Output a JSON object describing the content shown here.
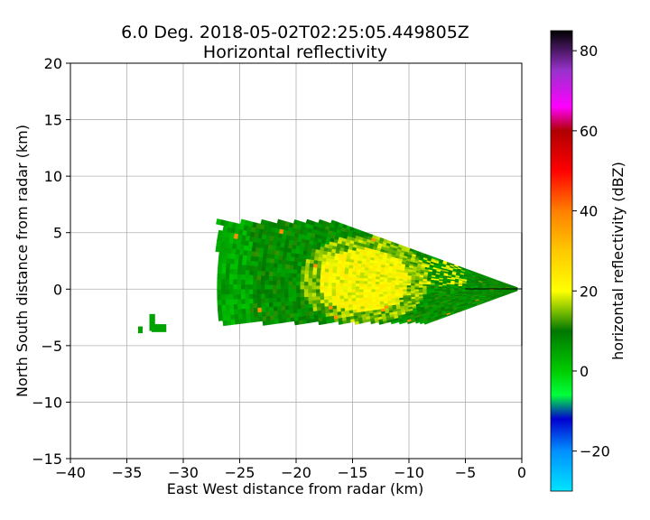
{
  "chart_data": {
    "type": "heatmap",
    "title": "6.0 Deg. 2018-05-02T02:25:05.449805Z",
    "subtitle": "Horizontal reflectivity",
    "xlabel": "East West distance from radar (km)",
    "ylabel": "North South distance from radar (km)",
    "xlim": [
      -40,
      0
    ],
    "ylim": [
      -15,
      20
    ],
    "xticks": [
      -40,
      -35,
      -30,
      -25,
      -20,
      -15,
      -10,
      -5,
      0
    ],
    "yticks": [
      -15,
      -10,
      -5,
      0,
      5,
      10,
      15,
      20
    ],
    "grid": true,
    "colorbar": {
      "label": "horizontal reflectivity (dBZ)",
      "range": [
        -30,
        85
      ],
      "ticks": [
        -20,
        0,
        20,
        40,
        60,
        80
      ],
      "colormap": [
        {
          "v": -30,
          "color": "#00e5ff"
        },
        {
          "v": -20,
          "color": "#0090ff"
        },
        {
          "v": -12,
          "color": "#0000d0"
        },
        {
          "v": -6,
          "color": "#00ff3c"
        },
        {
          "v": 0,
          "color": "#00cc00"
        },
        {
          "v": 10,
          "color": "#007700"
        },
        {
          "v": 15,
          "color": "#7fc000"
        },
        {
          "v": 20,
          "color": "#ffff00"
        },
        {
          "v": 30,
          "color": "#ffc800"
        },
        {
          "v": 40,
          "color": "#ff7f00"
        },
        {
          "v": 50,
          "color": "#ff0000"
        },
        {
          "v": 60,
          "color": "#b00000"
        },
        {
          "v": 66,
          "color": "#ff00ff"
        },
        {
          "v": 75,
          "color": "#9932cc"
        },
        {
          "v": 85,
          "color": "#000000"
        }
      ]
    },
    "sector": {
      "azimuth_deg": [
        250,
        290
      ],
      "range_km": [
        0,
        28
      ],
      "data_extent_x": [
        -27,
        0
      ],
      "data_extent_y": [
        -3,
        6
      ]
    },
    "features": [
      {
        "name": "main-echo-sector",
        "x_range": [
          -27,
          0
        ],
        "y_range": [
          -3,
          6
        ],
        "dominant_dbz": [
          0,
          20
        ]
      },
      {
        "name": "high-reflectivity-core",
        "x_range": [
          -17,
          -11
        ],
        "y_range": [
          -1.5,
          3.5
        ],
        "dbz": 20
      },
      {
        "name": "isolated-echo",
        "x_range": [
          -34,
          -31.5
        ],
        "y_range": [
          -4,
          -2.2
        ],
        "dbz": 5
      }
    ]
  }
}
